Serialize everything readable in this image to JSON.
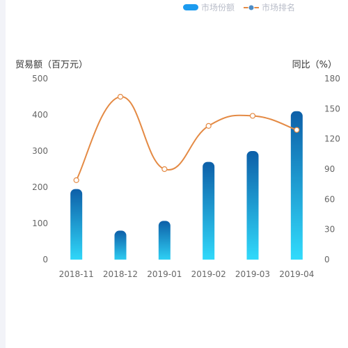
{
  "chart_data": {
    "type": "bar+line",
    "categories": [
      "2018-11",
      "2018-12",
      "2019-01",
      "2019-02",
      "2019-03",
      "2019-04"
    ],
    "series": [
      {
        "name": "市场份额",
        "type": "bar",
        "axis": "left",
        "values": [
          195,
          80,
          107,
          270,
          300,
          410
        ]
      },
      {
        "name": "市场排名",
        "type": "line",
        "axis": "right",
        "smooth": true,
        "values": [
          79,
          162,
          90,
          133,
          143,
          129
        ]
      }
    ],
    "y_left": {
      "label": "贸易额（百万元）",
      "min": 0,
      "max": 500,
      "ticks": [
        "0",
        "100",
        "200",
        "300",
        "400",
        "500"
      ]
    },
    "y_right": {
      "label": "同比（%）",
      "min": 0,
      "max": 180,
      "ticks": [
        "0",
        "30",
        "60",
        "90",
        "120",
        "150",
        "180"
      ]
    },
    "grid": false,
    "legend": "top-right",
    "colors": {
      "bar_top": "#0d5fa8",
      "bar_bottom": "#33e0ff",
      "line": "#e48a44",
      "legend_bar": "#1c9bef",
      "legend_dot": "#4c8cc6"
    }
  }
}
